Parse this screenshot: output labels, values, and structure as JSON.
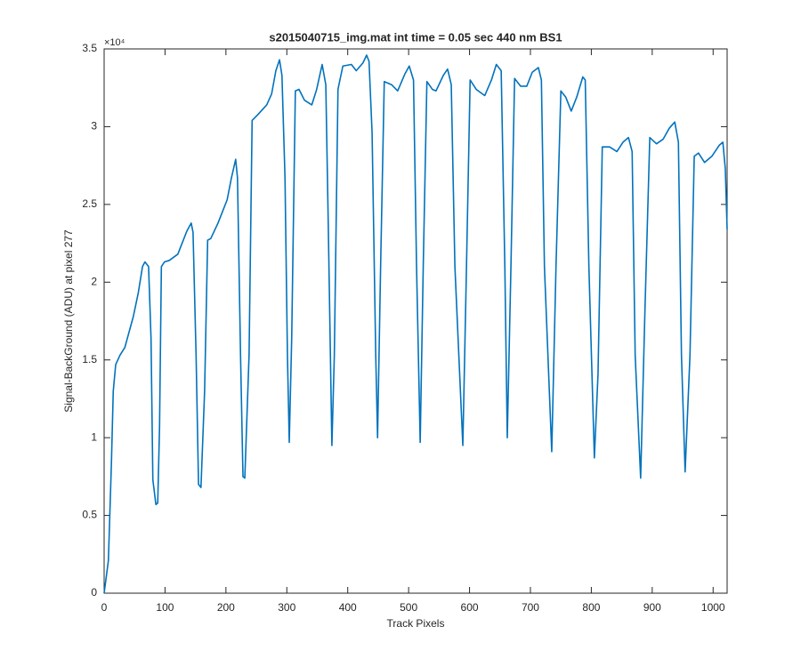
{
  "chart_data": {
    "type": "line",
    "title": "s2015040715_img.mat int time = 0.05 sec  440 nm BS1",
    "x_label": "Track Pixels",
    "y_label": "Signal-BackGround (ADU) at pixel 277",
    "y_multiplier": "×10⁴",
    "color": "#0072BD",
    "x": [
      0,
      7,
      12,
      15,
      19,
      26,
      34,
      48,
      56,
      63,
      67,
      73,
      77,
      80,
      85,
      88,
      91,
      94,
      99,
      107,
      114,
      121,
      136,
      143,
      146,
      151,
      155,
      159,
      165,
      170,
      175,
      187,
      202,
      209,
      216,
      219,
      224,
      228,
      231,
      238,
      243,
      253,
      267,
      275,
      282,
      288,
      292,
      297,
      301,
      304,
      308,
      314,
      320,
      329,
      341,
      349,
      358,
      364,
      368,
      374,
      378,
      384,
      392,
      406,
      414,
      425,
      431,
      435,
      440,
      446,
      449,
      454,
      460,
      472,
      482,
      494,
      501,
      508,
      513,
      519,
      524,
      530,
      539,
      545,
      557,
      564,
      570,
      576,
      589,
      595,
      601,
      611,
      625,
      636,
      644,
      652,
      658,
      662,
      668,
      674,
      684,
      694,
      703,
      713,
      718,
      723,
      735,
      742,
      750,
      758,
      767,
      776,
      786,
      790,
      796,
      805,
      811,
      818,
      830,
      842,
      852,
      861,
      867,
      872,
      881,
      888,
      896,
      907,
      918,
      928,
      937,
      943,
      948,
      954,
      962,
      969,
      976,
      986,
      998,
      1010,
      1016,
      1020,
      1023
    ],
    "values": [
      0,
      2100,
      8400,
      13000,
      14700,
      15300,
      15800,
      17800,
      19300,
      21000,
      21300,
      21000,
      16400,
      7300,
      5700,
      5800,
      10700,
      21000,
      21300,
      21400,
      21600,
      21800,
      23300,
      23800,
      23200,
      15300,
      7000,
      6800,
      13000,
      22700,
      22800,
      23800,
      25300,
      26700,
      27900,
      26700,
      15300,
      7500,
      7400,
      15300,
      30400,
      30800,
      31400,
      32100,
      33600,
      34300,
      33300,
      26700,
      15300,
      9700,
      16400,
      32300,
      32400,
      31700,
      31400,
      32400,
      34000,
      32700,
      23800,
      9500,
      15300,
      32400,
      33900,
      34000,
      33600,
      34100,
      34600,
      34200,
      29600,
      15300,
      10000,
      21000,
      32900,
      32700,
      32300,
      33400,
      33900,
      33000,
      21000,
      9700,
      21000,
      32900,
      32400,
      32300,
      33300,
      33700,
      32700,
      21000,
      9500,
      21000,
      33000,
      32400,
      32000,
      33000,
      34000,
      33600,
      21000,
      10000,
      21000,
      33100,
      32600,
      32600,
      33500,
      33800,
      33000,
      21000,
      9100,
      21000,
      32300,
      31900,
      31000,
      31900,
      33200,
      33000,
      21000,
      8700,
      14100,
      28700,
      28700,
      28400,
      29000,
      29300,
      28400,
      15300,
      7400,
      18100,
      29300,
      28900,
      29200,
      29900,
      30300,
      29000,
      15300,
      7800,
      15300,
      28100,
      28300,
      27700,
      28100,
      28800,
      29000,
      27300,
      23400
    ],
    "xlim": [
      0,
      1023
    ],
    "xticks": [
      0,
      100,
      200,
      300,
      400,
      500,
      600,
      700,
      800,
      900,
      1000
    ],
    "ylim": [
      0,
      35000
    ],
    "yticks": [
      {
        "value": 0,
        "label": "0"
      },
      {
        "value": 5000,
        "label": "0.5"
      },
      {
        "value": 10000,
        "label": "1"
      },
      {
        "value": 15000,
        "label": "1.5"
      },
      {
        "value": 20000,
        "label": "2"
      },
      {
        "value": 25000,
        "label": "2.5"
      },
      {
        "value": 30000,
        "label": "3"
      },
      {
        "value": 35000,
        "label": "3.5"
      }
    ],
    "grid": false
  }
}
